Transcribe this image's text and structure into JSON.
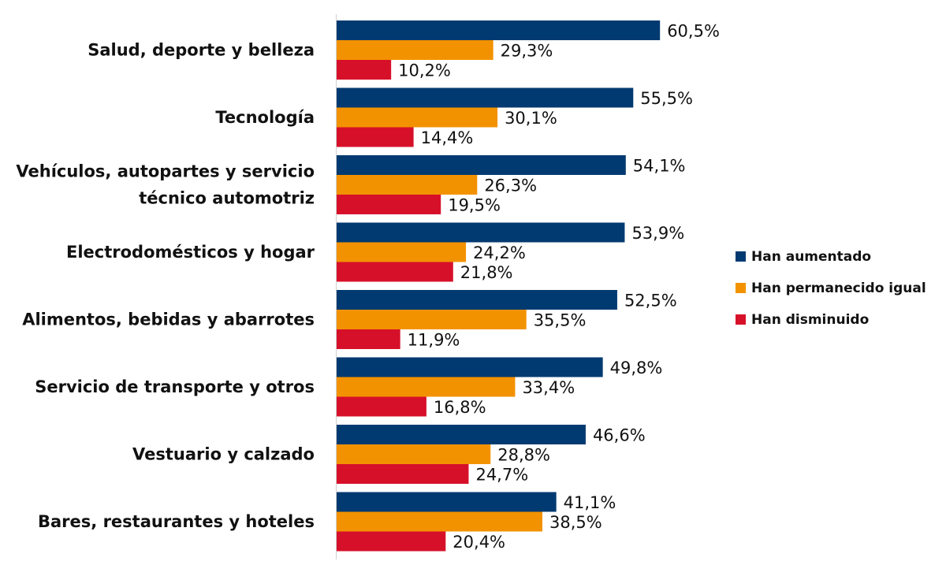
{
  "chart_data": {
    "type": "bar",
    "orientation": "horizontal",
    "title": "",
    "xlabel": "",
    "ylabel": "",
    "xlim": [
      0,
      65
    ],
    "grid": false,
    "legend_position": "right",
    "value_suffix": "%",
    "decimal_separator": ",",
    "categories": [
      [
        "Salud, deporte y belleza"
      ],
      [
        "Tecnología"
      ],
      [
        "Vehículos, autopartes y servicio",
        "técnico automotriz"
      ],
      [
        "Electrodomésticos y hogar"
      ],
      [
        "Alimentos, bebidas y abarrotes"
      ],
      [
        "Servicio de transporte y otros"
      ],
      [
        "Vestuario y calzado"
      ],
      [
        "Bares, restaurantes y hoteles"
      ]
    ],
    "series": [
      {
        "name": "Han aumentado",
        "color": "#003A70",
        "values": [
          60.5,
          55.5,
          54.1,
          53.9,
          52.5,
          49.8,
          46.6,
          41.1
        ]
      },
      {
        "name": "Han permanecido igual",
        "color": "#F39200",
        "values": [
          29.3,
          30.1,
          26.3,
          24.2,
          35.5,
          33.4,
          28.8,
          38.5
        ]
      },
      {
        "name": "Han disminuido",
        "color": "#D7102A",
        "values": [
          10.2,
          14.4,
          19.5,
          21.8,
          11.9,
          16.8,
          24.7,
          20.4
        ]
      }
    ]
  }
}
